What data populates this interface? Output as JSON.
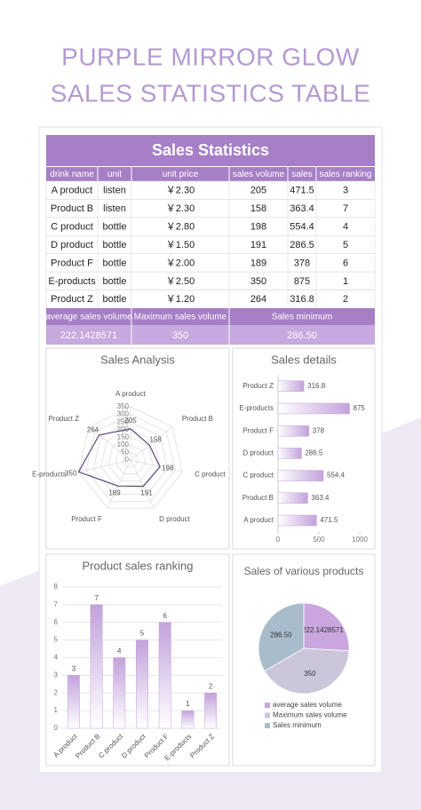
{
  "header": {
    "line1": "PURPLE MIRROR GLOW",
    "line2": "SALES STATISTICS TABLE"
  },
  "table": {
    "title": "Sales Statistics",
    "columns": [
      "drink name",
      "unit",
      "unit price",
      "sales volume",
      "sales",
      "sales ranking"
    ],
    "rows": [
      [
        "A product",
        "listen",
        "￥2.30",
        "205",
        "471.5",
        "3"
      ],
      [
        "Product B",
        "listen",
        "￥2.30",
        "158",
        "363.4",
        "7"
      ],
      [
        "C product",
        "bottle",
        "￥2.80",
        "198",
        "554.4",
        "4"
      ],
      [
        "D product",
        "bottle",
        "￥1.50",
        "191",
        "286.5",
        "5"
      ],
      [
        "Product F",
        "bottle",
        "￥2.00",
        "189",
        "378",
        "6"
      ],
      [
        "E-products",
        "bottle",
        "￥2.50",
        "350",
        "875",
        "1"
      ],
      [
        "Product Z",
        "bottle",
        "￥1.20",
        "264",
        "316.8",
        "2"
      ]
    ]
  },
  "summary": {
    "labels": [
      "average sales volume",
      "Maximum sales volume",
      "Sales minimum"
    ],
    "values": [
      "222.1428571",
      "350",
      "286.50"
    ]
  },
  "chart_data": [
    {
      "type": "radar",
      "title": "Sales Analysis",
      "categories": [
        "A product",
        "Product B",
        "C product",
        "D product",
        "Product F",
        "E-products",
        "Product Z"
      ],
      "values": [
        205,
        158,
        198,
        191,
        189,
        350,
        264
      ],
      "rlim": [
        0,
        350
      ],
      "rticks": [
        0,
        50,
        100,
        150,
        200,
        250,
        300,
        350
      ],
      "color": "#5e4a78"
    },
    {
      "type": "bar",
      "orientation": "horizontal",
      "title": "Sales details",
      "categories": [
        "A product",
        "Product B",
        "C product",
        "D product",
        "Product F",
        "E-products",
        "Product Z"
      ],
      "values": [
        471.5,
        363.4,
        554.4,
        286.5,
        378,
        875,
        316.8
      ],
      "xlim": [
        0,
        1000
      ],
      "xticks": [
        0,
        500,
        1000
      ],
      "color": "#c3a2dc"
    },
    {
      "type": "bar",
      "orientation": "vertical",
      "title": "Product sales ranking",
      "categories": [
        "A product",
        "Product B",
        "C product",
        "D product",
        "Product F",
        "E-products",
        "Product Z"
      ],
      "values": [
        3,
        7,
        4,
        5,
        6,
        1,
        2
      ],
      "ylim": [
        0,
        8
      ],
      "yticks": [
        0,
        1,
        2,
        3,
        4,
        5,
        6,
        7,
        8
      ],
      "grid": true,
      "color": "#c3a2dc"
    },
    {
      "type": "pie",
      "title": "Sales of various products",
      "categories": [
        "average sales volume",
        "Maximum sales volume",
        "Sales minimum"
      ],
      "values": [
        222.1428571,
        350,
        286.5
      ],
      "value_labels": [
        "222.1428571",
        "350",
        "286.50"
      ],
      "colors": [
        "#c9a6de",
        "#cbc6d9",
        "#a8bccb"
      ]
    }
  ]
}
